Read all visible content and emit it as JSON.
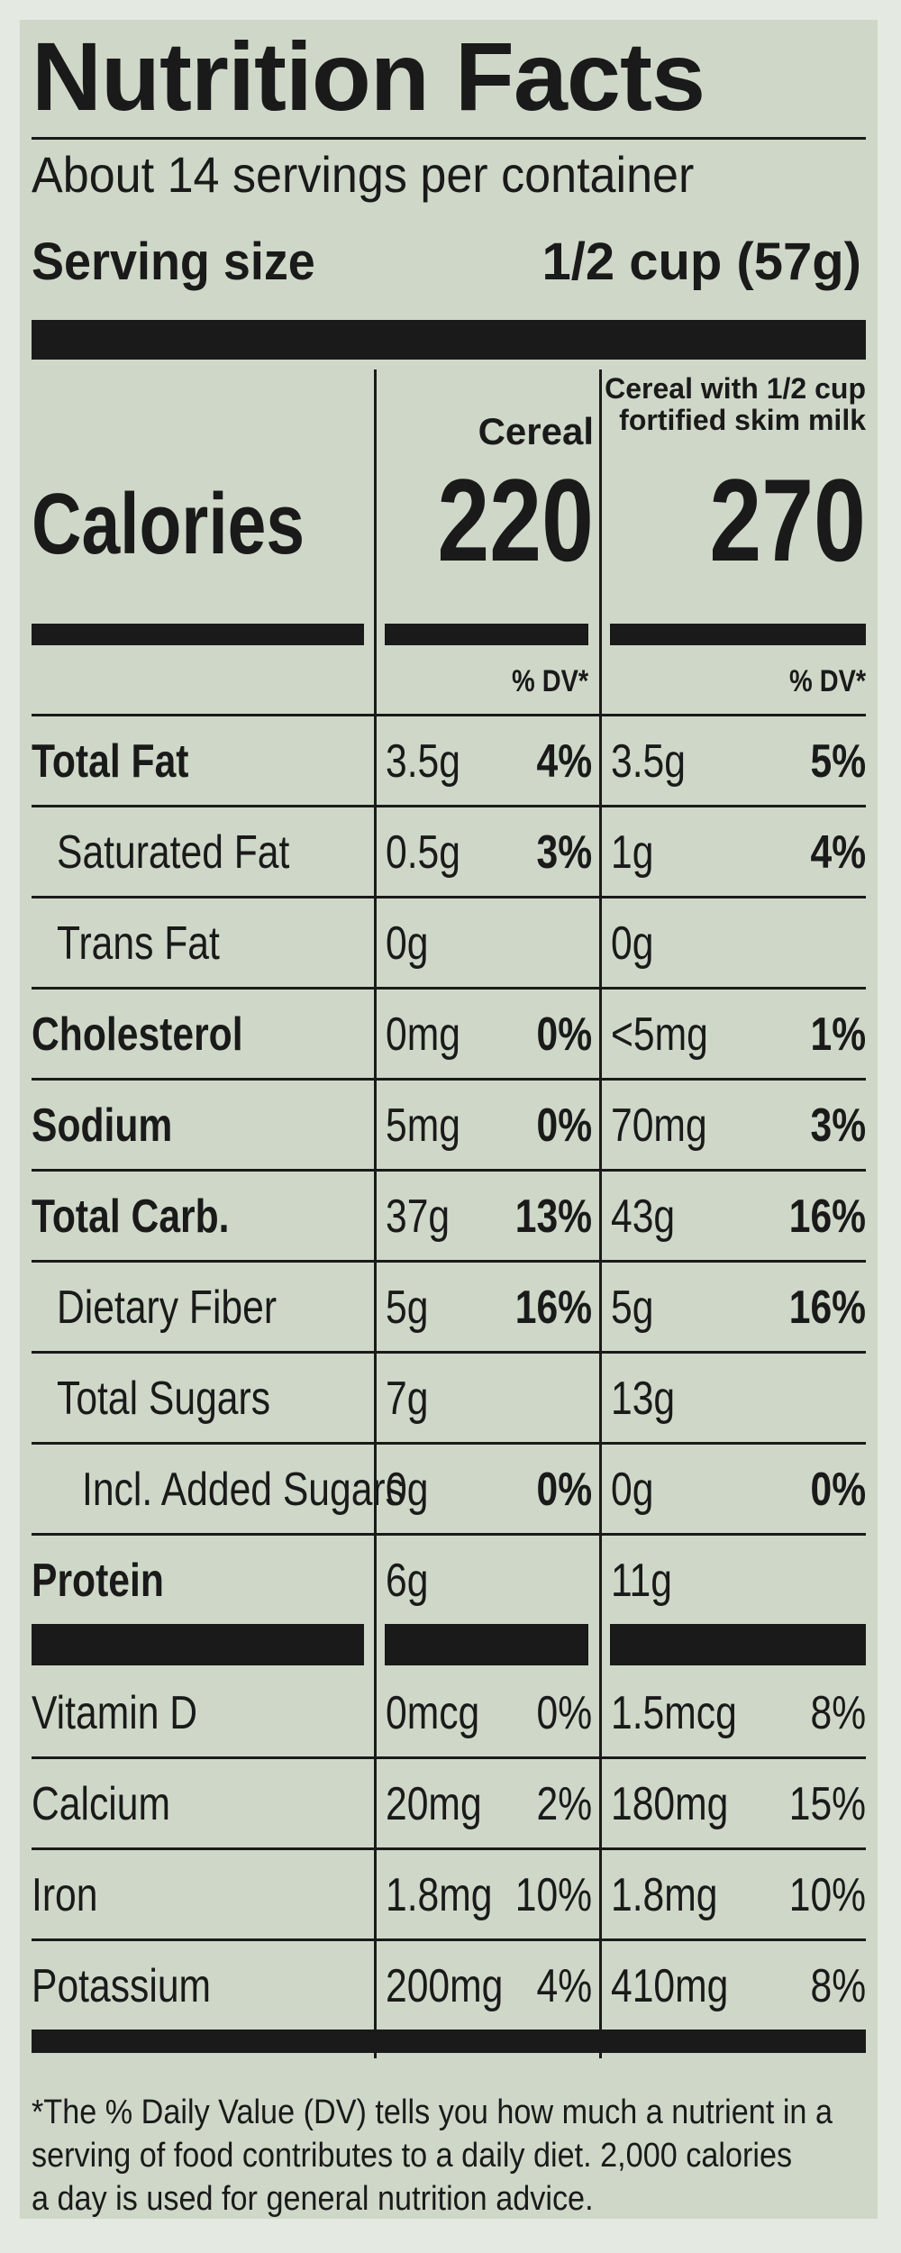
{
  "title": "Nutrition Facts",
  "servings_per_container": "About 14 servings per container",
  "serving_size_label": "Serving size",
  "serving_size_value": "1/2 cup (57g)",
  "columns": {
    "cereal_header": "Cereal",
    "milk_header_line1": "Cereal with 1/2 cup",
    "milk_header_line2": "fortified skim milk",
    "dv_header": "% DV*"
  },
  "calories": {
    "label": "Calories",
    "cereal": "220",
    "with_milk": "270"
  },
  "nutrients": [
    {
      "name": "Total Fat",
      "bold": true,
      "indent": 0,
      "cereal_amt": "3.5g",
      "cereal_dv": "4%",
      "milk_amt": "3.5g",
      "milk_dv": "5%"
    },
    {
      "name": "Saturated Fat",
      "bold": false,
      "indent": 1,
      "cereal_amt": "0.5g",
      "cereal_dv": "3%",
      "milk_amt": "1g",
      "milk_dv": "4%"
    },
    {
      "name": "Trans Fat",
      "bold": false,
      "indent": 1,
      "cereal_amt": "0g",
      "cereal_dv": "",
      "milk_amt": "0g",
      "milk_dv": ""
    },
    {
      "name": "Cholesterol",
      "bold": true,
      "indent": 0,
      "cereal_amt": "0mg",
      "cereal_dv": "0%",
      "milk_amt": "<5mg",
      "milk_dv": "1%"
    },
    {
      "name": "Sodium",
      "bold": true,
      "indent": 0,
      "cereal_amt": "5mg",
      "cereal_dv": "0%",
      "milk_amt": "70mg",
      "milk_dv": "3%"
    },
    {
      "name": "Total Carb.",
      "bold": true,
      "indent": 0,
      "cereal_amt": "37g",
      "cereal_dv": "13%",
      "milk_amt": "43g",
      "milk_dv": "16%"
    },
    {
      "name": "Dietary Fiber",
      "bold": false,
      "indent": 1,
      "cereal_amt": "5g",
      "cereal_dv": "16%",
      "milk_amt": "5g",
      "milk_dv": "16%"
    },
    {
      "name": "Total Sugars",
      "bold": false,
      "indent": 1,
      "cereal_amt": "7g",
      "cereal_dv": "",
      "milk_amt": "13g",
      "milk_dv": ""
    },
    {
      "name": "Incl. Added Sugars",
      "bold": false,
      "indent": 2,
      "cereal_amt": "0g",
      "cereal_dv": "0%",
      "milk_amt": "0g",
      "milk_dv": "0%"
    },
    {
      "name": "Protein",
      "bold": true,
      "indent": 0,
      "cereal_amt": "6g",
      "cereal_dv": "",
      "milk_amt": "11g",
      "milk_dv": ""
    }
  ],
  "vitamins": [
    {
      "name": "Vitamin D",
      "cereal_amt": "0mcg",
      "cereal_dv": "0%",
      "milk_amt": "1.5mcg",
      "milk_dv": "8%"
    },
    {
      "name": "Calcium",
      "cereal_amt": "20mg",
      "cereal_dv": "2%",
      "milk_amt": "180mg",
      "milk_dv": "15%"
    },
    {
      "name": "Iron",
      "cereal_amt": "1.8mg",
      "cereal_dv": "10%",
      "milk_amt": "1.8mg",
      "milk_dv": "10%"
    },
    {
      "name": "Potassium",
      "cereal_amt": "200mg",
      "cereal_dv": "4%",
      "milk_amt": "410mg",
      "milk_dv": "8%"
    }
  ],
  "footnote": "*The % Daily Value (DV) tells you how much a nutrient in a\nserving of food contributes to a daily diet. 2,000 calories\na day is used for general nutrition advice."
}
